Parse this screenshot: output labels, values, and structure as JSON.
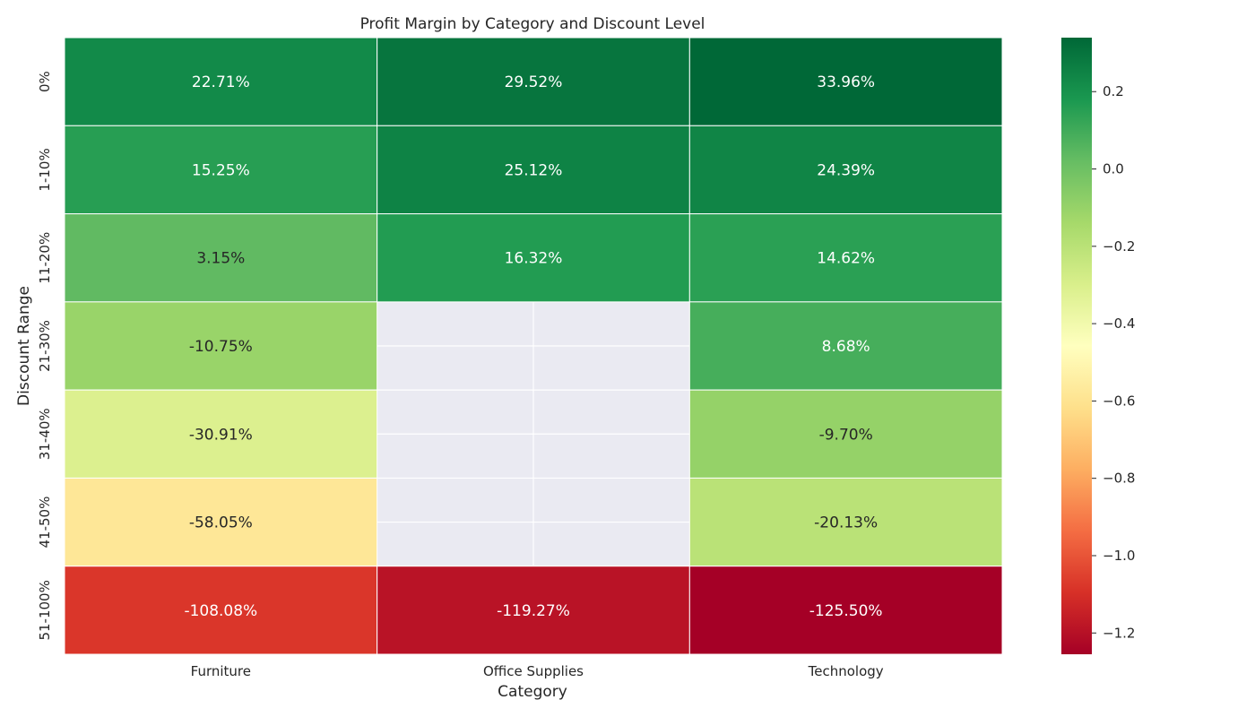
{
  "chart_data": {
    "type": "heatmap",
    "title": "Profit Margin by Category and Discount Level",
    "xlabel": "Category",
    "ylabel": "Discount Range",
    "x_categories": [
      "Furniture",
      "Office Supplies",
      "Technology"
    ],
    "y_categories": [
      "0%",
      "1-10%",
      "11-20%",
      "21-30%",
      "31-40%",
      "41-50%",
      "51-100%"
    ],
    "values": [
      [
        0.2271,
        0.2952,
        0.3396
      ],
      [
        0.1525,
        0.2512,
        0.2439
      ],
      [
        0.0315,
        0.1632,
        0.1462
      ],
      [
        -0.1075,
        null,
        0.0868
      ],
      [
        -0.3091,
        null,
        -0.097
      ],
      [
        -0.5805,
        null,
        -0.2013
      ],
      [
        -1.0808,
        -1.1927,
        -1.255
      ]
    ],
    "cell_labels": [
      [
        "22.71%",
        "29.52%",
        "33.96%"
      ],
      [
        "15.25%",
        "25.12%",
        "24.39%"
      ],
      [
        "3.15%",
        "16.32%",
        "14.62%"
      ],
      [
        "-10.75%",
        "",
        "8.68%"
      ],
      [
        "-30.91%",
        "",
        "-9.70%"
      ],
      [
        "-58.05%",
        "",
        "-20.13%"
      ],
      [
        "-108.08%",
        "-119.27%",
        "-125.50%"
      ]
    ],
    "colormap": "RdYlGn",
    "color_range": [
      -1.255,
      0.3396
    ],
    "colorbar_ticks": [
      {
        "value": 0.2,
        "label": "0.2"
      },
      {
        "value": 0.0,
        "label": "0.0"
      },
      {
        "value": -0.2,
        "label": "−0.2"
      },
      {
        "value": -0.4,
        "label": "−0.4"
      },
      {
        "value": -0.6,
        "label": "−0.6"
      },
      {
        "value": -0.8,
        "label": "−0.8"
      },
      {
        "value": -1.0,
        "label": "−1.0"
      },
      {
        "value": -1.2,
        "label": "−1.2"
      }
    ],
    "missing_color": "#eaeaf2",
    "grid": true,
    "legend": "colorbar-right"
  }
}
